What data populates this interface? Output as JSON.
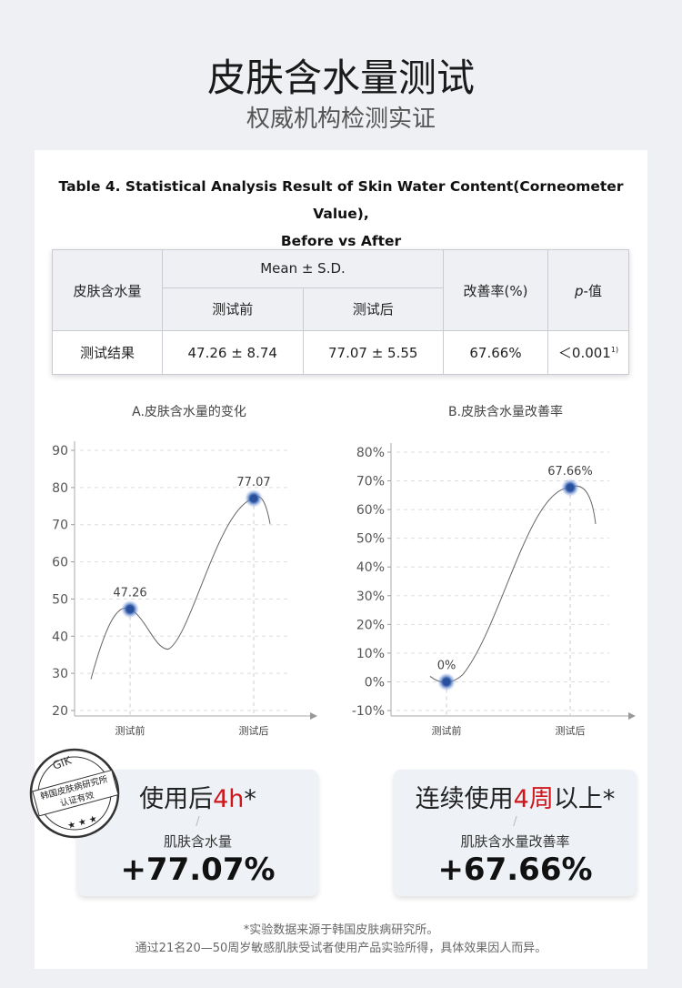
{
  "header": {
    "title": "皮肤含水量测试",
    "subtitle": "权威机构检测实证"
  },
  "table": {
    "caption": [
      "Table 4. Statistical Analysis Result of Skin Water Content(Corneometer Value),",
      "Before vs After"
    ],
    "head": {
      "item": "皮肤含水量",
      "mean": "Mean ± S.D.",
      "before": "测试前",
      "after": "测试后",
      "rate": "改善率(%)",
      "p_italic": "p",
      "p_rest": "-值"
    },
    "rows": [
      [
        "测试结果",
        "47.26 ± 8.74",
        "77.07 ± 5.55",
        "67.66%",
        "＜0.001",
        "1)"
      ]
    ]
  },
  "chart_data": [
    {
      "type": "line",
      "title": "A.皮肤含水量的变化",
      "categories": [
        "测试前",
        "测试后"
      ],
      "values": [
        47.26,
        77.07
      ],
      "color": "#2a4f9a",
      "ylim": [
        20,
        90
      ],
      "yticks": [
        20,
        30,
        40,
        50,
        60,
        70,
        80,
        90
      ],
      "grid": true
    },
    {
      "type": "line",
      "title": "B.皮肤含水量改善率",
      "categories": [
        "测试前",
        "测试后"
      ],
      "values": [
        0,
        67.66
      ],
      "value_labels": [
        "0%",
        "67.66%"
      ],
      "color": "#2a4f9a",
      "ylim": [
        -10,
        80
      ],
      "yticks": [
        {
          "value": -10,
          "label": "-10%"
        },
        {
          "value": 0,
          "label": "0%"
        },
        {
          "value": 10,
          "label": "10%"
        },
        {
          "value": 20,
          "label": "20%"
        },
        {
          "value": 30,
          "label": "30%"
        },
        {
          "value": 40,
          "label": "40%"
        },
        {
          "value": 50,
          "label": "50%"
        },
        {
          "value": 60,
          "label": "60%"
        },
        {
          "value": 70,
          "label": "70%"
        },
        {
          "value": 80,
          "label": "80%"
        }
      ],
      "grid": true
    }
  ],
  "cards": [
    {
      "prefix": "使用后",
      "highlight": "4h",
      "suffix": "*",
      "label": "肌肤含水量",
      "value": "+77.07%"
    },
    {
      "prefix": "连续使用",
      "highlight": "4周",
      "suffix": "以上*",
      "label": "肌肤含水量改善率",
      "value": "+67.66%"
    }
  ],
  "stamp": {
    "code": "GIK",
    "org": "韩国皮肤病研究所",
    "cert": "认证有效"
  },
  "footnote": [
    "*实验数据来源于韩国皮肤病研究所。",
    "通过21名20—50周岁敏感肌肤受试者使用产品实验所得，具体效果因人而异。"
  ]
}
